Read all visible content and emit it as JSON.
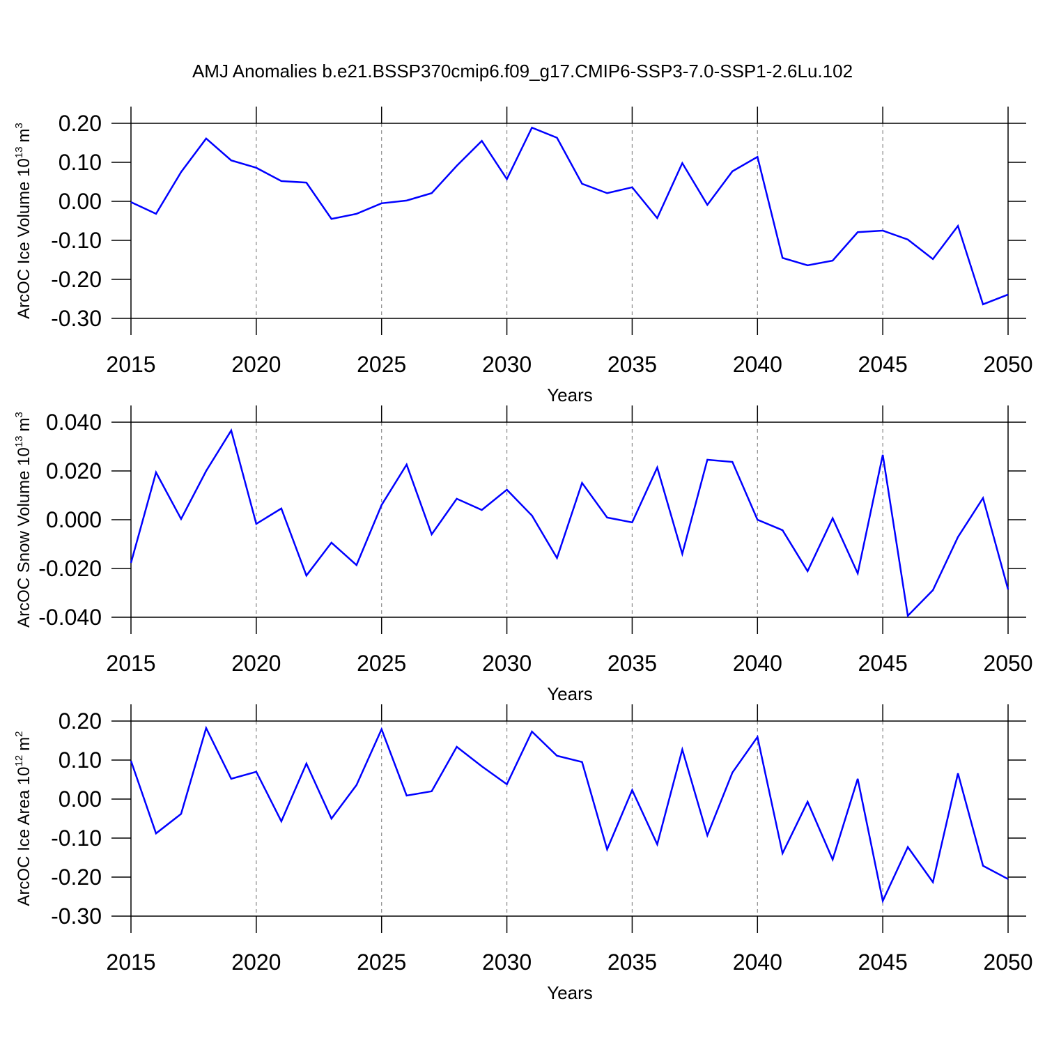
{
  "chart_data": [
    {
      "type": "line",
      "title": "AMJ Anomalies b.e21.BSSP370cmip6.f09_g17.CMIP6-SSP3-7.0-SSP1-2.6Lu.102",
      "xlabel": "Years",
      "ylabel": [
        "ArcOC Ice Volume 10",
        "13",
        "m",
        "3"
      ],
      "x": [
        2015,
        2016,
        2017,
        2018,
        2019,
        2020,
        2021,
        2022,
        2023,
        2024,
        2025,
        2026,
        2027,
        2028,
        2029,
        2030,
        2031,
        2032,
        2033,
        2034,
        2035,
        2036,
        2037,
        2038,
        2039,
        2040,
        2041,
        2042,
        2043,
        2044,
        2045,
        2046,
        2047,
        2048,
        2049,
        2050
      ],
      "series": [
        {
          "color": "#0000ff",
          "values": [
            -0.002,
            -0.032,
            0.075,
            0.161,
            0.105,
            0.086,
            0.052,
            0.048,
            -0.045,
            -0.032,
            -0.005,
            0.002,
            0.021,
            0.091,
            0.155,
            0.057,
            0.189,
            0.163,
            0.045,
            0.021,
            0.036,
            -0.043,
            0.098,
            -0.009,
            0.077,
            0.114,
            -0.145,
            -0.164,
            -0.152,
            -0.079,
            -0.075,
            -0.098,
            -0.148,
            -0.063,
            -0.264,
            -0.239
          ]
        }
      ],
      "xlim": [
        2015,
        2050
      ],
      "xticks": [
        2015,
        2020,
        2025,
        2030,
        2035,
        2040,
        2045,
        2050
      ],
      "ylim": [
        -0.3,
        0.2
      ],
      "yticks": [
        {
          "value": -0.3,
          "label": "-0.30"
        },
        {
          "value": -0.2,
          "label": "-0.20"
        },
        {
          "value": -0.1,
          "label": "-0.10"
        },
        {
          "value": 0,
          "label": "0.00"
        },
        {
          "value": 0.1,
          "label": "0.10"
        },
        {
          "value": 0.2,
          "label": "0.20"
        }
      ],
      "grid": true
    },
    {
      "type": "line",
      "xlabel": "Years",
      "ylabel": [
        "ArcOC Snow Volume 10",
        "13",
        "m",
        "3"
      ],
      "x": [
        2015,
        2016,
        2017,
        2018,
        2019,
        2020,
        2021,
        2022,
        2023,
        2024,
        2025,
        2026,
        2027,
        2028,
        2029,
        2030,
        2031,
        2032,
        2033,
        2034,
        2035,
        2036,
        2037,
        2038,
        2039,
        2040,
        2041,
        2042,
        2043,
        2044,
        2045,
        2046,
        2047,
        2048,
        2049,
        2050
      ],
      "series": [
        {
          "color": "#0000ff",
          "values": [
            -0.0177,
            0.0194,
            0.0003,
            0.02,
            0.0366,
            -0.0017,
            0.0046,
            -0.0229,
            -0.0094,
            -0.0186,
            0.006,
            0.0226,
            -0.006,
            0.0086,
            0.004,
            0.0123,
            0.0017,
            -0.0157,
            0.0151,
            0.0009,
            -0.0011,
            0.0214,
            -0.014,
            0.0246,
            0.0237,
            0.0,
            -0.0043,
            -0.0211,
            0.0006,
            -0.022,
            0.0266,
            -0.0394,
            -0.0289,
            -0.0071,
            0.0089,
            -0.0286
          ]
        }
      ],
      "xlim": [
        2015,
        2050
      ],
      "xticks": [
        2015,
        2020,
        2025,
        2030,
        2035,
        2040,
        2045,
        2050
      ],
      "ylim": [
        -0.04,
        0.04
      ],
      "yticks": [
        {
          "value": -0.04,
          "label": "-0.040"
        },
        {
          "value": -0.02,
          "label": "-0.020"
        },
        {
          "value": 0,
          "label": "0.000"
        },
        {
          "value": 0.02,
          "label": "0.020"
        },
        {
          "value": 0.04,
          "label": "0.040"
        }
      ],
      "grid": true
    },
    {
      "type": "line",
      "xlabel": "Years",
      "ylabel": [
        "ArcOC Ice Area 10",
        "12",
        "m",
        "2"
      ],
      "x": [
        2015,
        2016,
        2017,
        2018,
        2019,
        2020,
        2021,
        2022,
        2023,
        2024,
        2025,
        2026,
        2027,
        2028,
        2029,
        2030,
        2031,
        2032,
        2033,
        2034,
        2035,
        2036,
        2037,
        2038,
        2039,
        2040,
        2041,
        2042,
        2043,
        2044,
        2045,
        2046,
        2047,
        2048,
        2049,
        2050
      ],
      "series": [
        {
          "color": "#0000ff",
          "values": [
            0.098,
            -0.088,
            -0.038,
            0.182,
            0.052,
            0.07,
            -0.057,
            0.091,
            -0.05,
            0.036,
            0.179,
            0.009,
            0.02,
            0.134,
            0.084,
            0.038,
            0.173,
            0.111,
            0.095,
            -0.129,
            0.023,
            -0.116,
            0.127,
            -0.093,
            0.068,
            0.159,
            -0.139,
            -0.007,
            -0.155,
            0.052,
            -0.261,
            -0.123,
            -0.213,
            0.066,
            -0.171,
            -0.205
          ]
        }
      ],
      "xlim": [
        2015,
        2050
      ],
      "xticks": [
        2015,
        2020,
        2025,
        2030,
        2035,
        2040,
        2045,
        2050
      ],
      "ylim": [
        -0.3,
        0.2
      ],
      "yticks": [
        {
          "value": -0.3,
          "label": "-0.30"
        },
        {
          "value": -0.2,
          "label": "-0.20"
        },
        {
          "value": -0.1,
          "label": "-0.10"
        },
        {
          "value": 0,
          "label": "0.00"
        },
        {
          "value": 0.1,
          "label": "0.10"
        },
        {
          "value": 0.2,
          "label": "0.20"
        }
      ],
      "grid": true
    }
  ]
}
